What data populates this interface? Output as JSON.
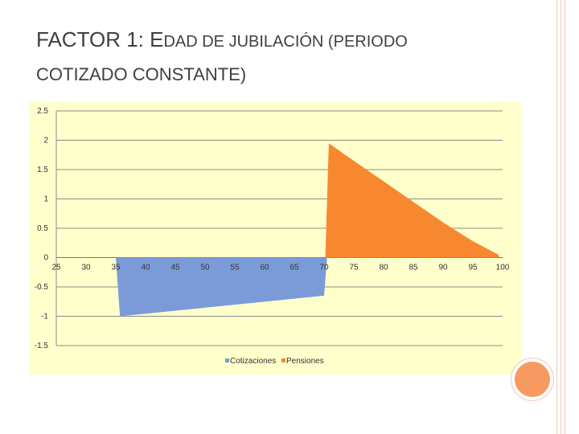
{
  "slide": {
    "title_lead": "FACTOR 1: E",
    "title_rest": "DAD DE JUBILACIÓN (",
    "title_tail": "PERIODO",
    "title_line2": "COTIZADO CONSTANTE)"
  },
  "colors": {
    "plot_bg": "#ffffcc",
    "cotizaciones": "#7b9bd8",
    "pensiones": "#f7882f",
    "accent_circle": "#f79a62",
    "rail": "#f1c9b8"
  },
  "chart_data": {
    "type": "area",
    "title": "",
    "xlabel": "",
    "ylabel": "",
    "x_ticks": [
      "25",
      "30",
      "35",
      "40",
      "45",
      "50",
      "55",
      "60",
      "65",
      "70",
      "75",
      "80",
      "85",
      "90",
      "95",
      "100"
    ],
    "y_ticks": [
      "2.5",
      "2",
      "1.5",
      "1",
      "0.5",
      "0",
      "-0.5",
      "-1",
      "-1.5"
    ],
    "xlim": [
      25,
      100
    ],
    "ylim": [
      -1.5,
      2.5
    ],
    "grid": true,
    "legend_position": "bottom",
    "series": [
      {
        "name": "Cotizaciones",
        "color": "#7b9bd8",
        "x": [
          35,
          35.7,
          70,
          70.5
        ],
        "values": [
          0,
          -1.0,
          -0.65,
          0
        ]
      },
      {
        "name": "Pensiones",
        "color": "#f7882f",
        "x": [
          70.2,
          70.8,
          75,
          80,
          85,
          90,
          95,
          99.3,
          99.5
        ],
        "values": [
          0,
          1.95,
          1.65,
          1.3,
          0.95,
          0.6,
          0.28,
          0.05,
          0
        ]
      }
    ]
  }
}
